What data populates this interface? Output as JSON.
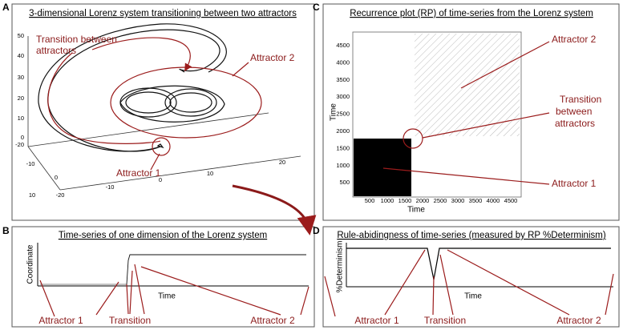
{
  "panels": {
    "a": {
      "letter": "A",
      "title": "3-dimensional Lorenz system transitioning between two attractors",
      "transition_lines": [
        "Transition between",
        "attractors"
      ],
      "attractor2": "Attractor 2",
      "attractor1": "Attractor 1",
      "z_ticks": [
        50,
        40,
        30,
        20,
        10,
        0,
        -20
      ],
      "left_ticks": [
        -10,
        0,
        10
      ],
      "bottom_ticks": [
        -20,
        -10,
        0,
        10,
        20
      ]
    },
    "b": {
      "letter": "B",
      "title": "Time-series of one dimension of the Lorenz system",
      "y_label": "Coordinate",
      "x_label": "Time",
      "labels": [
        "Attractor 1",
        "Transition",
        "Attractor 2"
      ]
    },
    "c": {
      "letter": "C",
      "title": "Recurrence plot (RP) of time-series from the Lorenz system",
      "y_label": "Time",
      "x_label": "Time",
      "y_ticks": [
        4500,
        4000,
        3500,
        3000,
        2500,
        2000,
        1500,
        1000,
        500
      ],
      "x_ticks": [
        500,
        1000,
        1500,
        2000,
        2500,
        3000,
        3500,
        4000,
        4500
      ],
      "attractor2": "Attractor 2",
      "transition_lines": [
        "Transition",
        "between",
        "attractors"
      ],
      "attractor1": "Attractor 1"
    },
    "d": {
      "letter": "D",
      "title": "Rule-abidingness of time-series (measured by RP %Determinism)",
      "y_label": "%Determinism",
      "x_label": "Time",
      "labels": [
        "Attractor 1",
        "Transition",
        "Attractor 2"
      ]
    }
  }
}
